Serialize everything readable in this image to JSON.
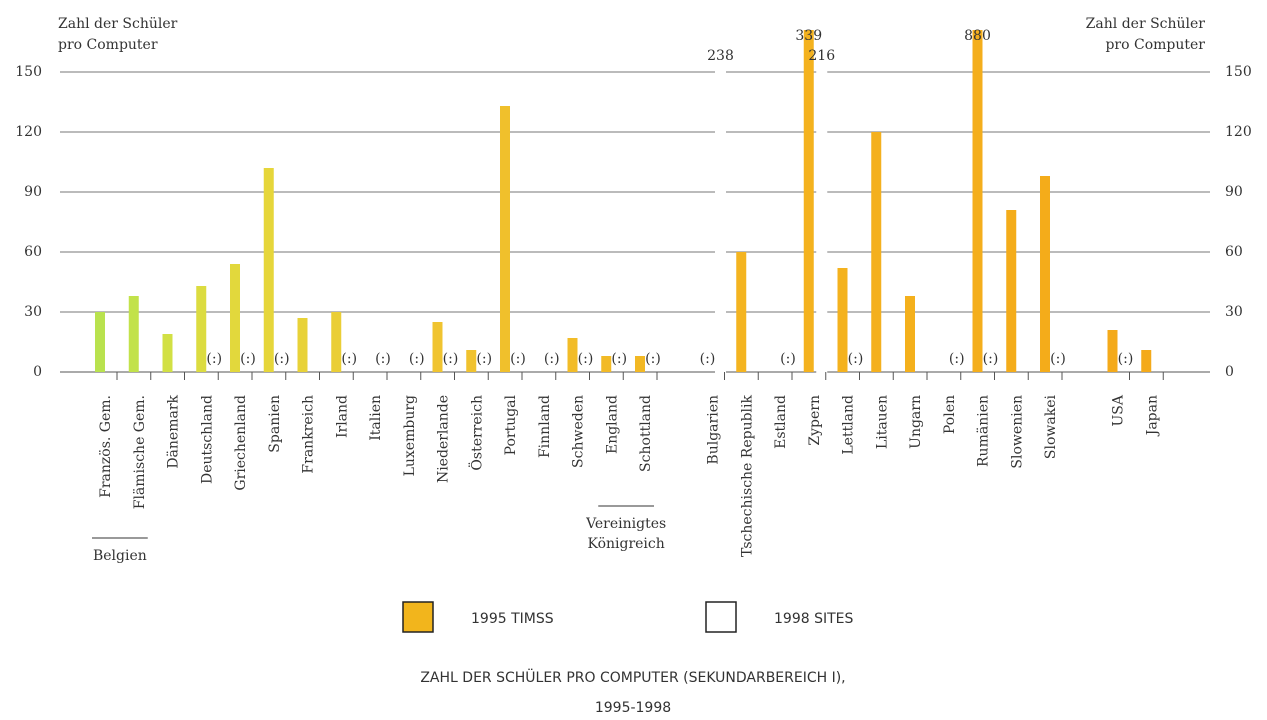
{
  "chart_data": {
    "type": "bar",
    "title": [
      "ZAHL DER SCHÜLER PRO COMPUTER (SEKUNDARBEREICH I),",
      "1995-1998"
    ],
    "y_label": [
      "Zahl der Schüler",
      "pro Computer"
    ],
    "categories": [
      "Französ. Gem.",
      "Flämische Gem.",
      "Dänemark",
      "Deutschland",
      "Griechenland",
      "Spanien",
      "Frankreich",
      "Irland",
      "Italien",
      "Luxemburg",
      "Niederlande",
      "Österreich",
      "Portugal",
      "Finnland",
      "Schweden",
      "England",
      "Schottland",
      "Bulgarien",
      "Tschechische Republik",
      "Estland",
      "Zypern",
      "Lettland",
      "Litauen",
      "Ungarn",
      "Polen",
      "Rumänien",
      "Slowenien",
      "Slowakei",
      "USA",
      "Japan"
    ],
    "group_labels": [
      [
        "Belgien"
      ],
      [
        "Vereinigtes",
        "Königreich"
      ]
    ],
    "series": [
      {
        "name": "1995 TIMSS",
        "color": "#f2b51c",
        "colors": [
          "#b9e24e",
          "#c2e24a",
          "#d2e044",
          "#dcdc40",
          "#e2d83c",
          "#e6d63a",
          "#e8d238",
          "#eace36",
          "#ecca34",
          "#eec832",
          "#f0c430",
          "#f0c22e",
          "#f0c02c",
          "#f0be2a",
          "#f2bc28",
          "#f2ba26",
          "#f2b824",
          "#f2b622",
          "#f4b420",
          "#f4b420",
          "#f4b21e",
          "#f4b21e",
          "#f4b01e",
          "#f4b01c",
          "#f4ae1c",
          "#f4ae1c",
          "#f4ac1a",
          "#f4ac1a",
          "#f4aa1a",
          "#f4aa1a"
        ],
        "values": [
          30,
          38,
          19,
          43,
          54,
          102,
          27,
          30,
          null,
          null,
          25,
          11,
          133,
          null,
          17,
          8,
          8,
          null,
          60,
          null,
          339,
          52,
          120,
          38,
          null,
          880,
          81,
          98,
          21,
          11
        ],
        "value_labels": [
          null,
          null,
          null,
          null,
          null,
          null,
          null,
          null,
          null,
          null,
          null,
          null,
          null,
          null,
          null,
          null,
          null,
          "(:)",
          null,
          null,
          "339",
          null,
          null,
          null,
          null,
          "880",
          null,
          null,
          null,
          null
        ]
      },
      {
        "name": "1998 SITES",
        "color": "#ffffff",
        "values": [
          null,
          null,
          null,
          null,
          null,
          null,
          null,
          null,
          null,
          null,
          null,
          null,
          null,
          null,
          null,
          null,
          null,
          238,
          null,
          null,
          216,
          null,
          null,
          null,
          null,
          null,
          null,
          null,
          null,
          null
        ],
        "value_labels": [
          null,
          null,
          null,
          "(:)",
          "(:)",
          "(:)",
          null,
          "(:)",
          "(:)",
          "(:)",
          "(:)",
          "(:)",
          "(:)",
          "(:)",
          "(:)",
          "(:)",
          "(:)",
          "238",
          null,
          "(:)",
          "216",
          "(:)",
          null,
          null,
          "(:)",
          "(:)",
          null,
          "(:)",
          "(:)",
          null
        ]
      }
    ],
    "ylim": [
      0,
      150
    ],
    "yticks": [
      0,
      30,
      60,
      90,
      120,
      150
    ],
    "grid": true
  }
}
